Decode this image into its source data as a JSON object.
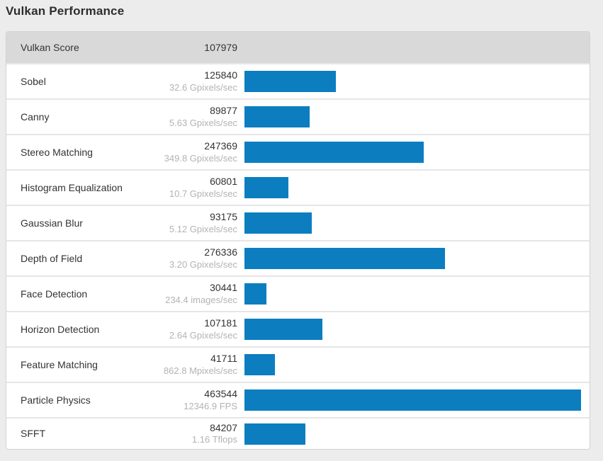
{
  "page": {
    "title": "Vulkan Performance"
  },
  "header": {
    "label": "Vulkan Score",
    "value": "107979"
  },
  "benchmarks": [
    {
      "name": "Sobel",
      "score": "125840",
      "rate": "32.6 Gpixels/sec"
    },
    {
      "name": "Canny",
      "score": "89877",
      "rate": "5.63 Gpixels/sec"
    },
    {
      "name": "Stereo Matching",
      "score": "247369",
      "rate": "349.8 Gpixels/sec"
    },
    {
      "name": "Histogram Equalization",
      "score": "60801",
      "rate": "10.7 Gpixels/sec"
    },
    {
      "name": "Gaussian Blur",
      "score": "93175",
      "rate": "5.12 Gpixels/sec"
    },
    {
      "name": "Depth of Field",
      "score": "276336",
      "rate": "3.20 Gpixels/sec"
    },
    {
      "name": "Face Detection",
      "score": "30441",
      "rate": "234.4 images/sec"
    },
    {
      "name": "Horizon Detection",
      "score": "107181",
      "rate": "2.64 Gpixels/sec"
    },
    {
      "name": "Feature Matching",
      "score": "41711",
      "rate": "862.8 Mpixels/sec"
    },
    {
      "name": "Particle Physics",
      "score": "463544",
      "rate": "12346.9 FPS"
    },
    {
      "name": "SFFT",
      "score": "84207",
      "rate": "1.16 Tflops"
    }
  ],
  "chart_data": {
    "type": "bar",
    "orientation": "horizontal",
    "title": "Vulkan Performance",
    "header_metric": {
      "label": "Vulkan Score",
      "value": 107979
    },
    "categories": [
      "Sobel",
      "Canny",
      "Stereo Matching",
      "Histogram Equalization",
      "Gaussian Blur",
      "Depth of Field",
      "Face Detection",
      "Horizon Detection",
      "Feature Matching",
      "Particle Physics",
      "SFFT"
    ],
    "values": [
      125840,
      89877,
      247369,
      60801,
      93175,
      276336,
      30441,
      107181,
      41711,
      463544,
      84207
    ],
    "rate_labels": [
      "32.6 Gpixels/sec",
      "5.63 Gpixels/sec",
      "349.8 Gpixels/sec",
      "10.7 Gpixels/sec",
      "5.12 Gpixels/sec",
      "3.20 Gpixels/sec",
      "234.4 images/sec",
      "2.64 Gpixels/sec",
      "862.8 Mpixels/sec",
      "12346.9 FPS",
      "1.16 Tflops"
    ],
    "xlim": [
      0,
      463544
    ],
    "bar_color": "#0c7ec0",
    "grid": false,
    "legend": false
  },
  "colors": {
    "bar": "#0c7ec0",
    "header_bg": "#d9d9d9",
    "page_bg": "#ececec",
    "rate_text": "#b3b3b3",
    "main_text": "#333333"
  }
}
